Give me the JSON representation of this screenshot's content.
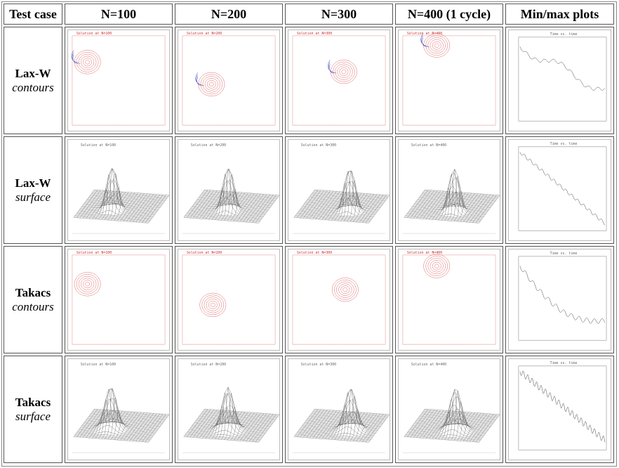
{
  "header": {
    "col0": "Test case",
    "col1": "N=100",
    "col2": "N=200",
    "col3": "N=300",
    "col4": "N=400 (1 cycle)",
    "col5": "Min/max plots"
  },
  "rows": [
    {
      "bold": "Lax-W",
      "italic": "contours"
    },
    {
      "bold": "Lax-W",
      "italic": "surface"
    },
    {
      "bold": "Takacs",
      "italic": "contours"
    },
    {
      "bold": "Takacs",
      "italic": "surface"
    }
  ],
  "plot_titles": {
    "n100": "Solution at N=100",
    "n200": "Solution at N=200",
    "n300": "Solution at N=300",
    "n400": "Solution at N=400",
    "minmax": "Time vs. time"
  },
  "colors": {
    "positive": "#d94c4c",
    "negative": "#3a46c0",
    "mesh": "#555555"
  }
}
